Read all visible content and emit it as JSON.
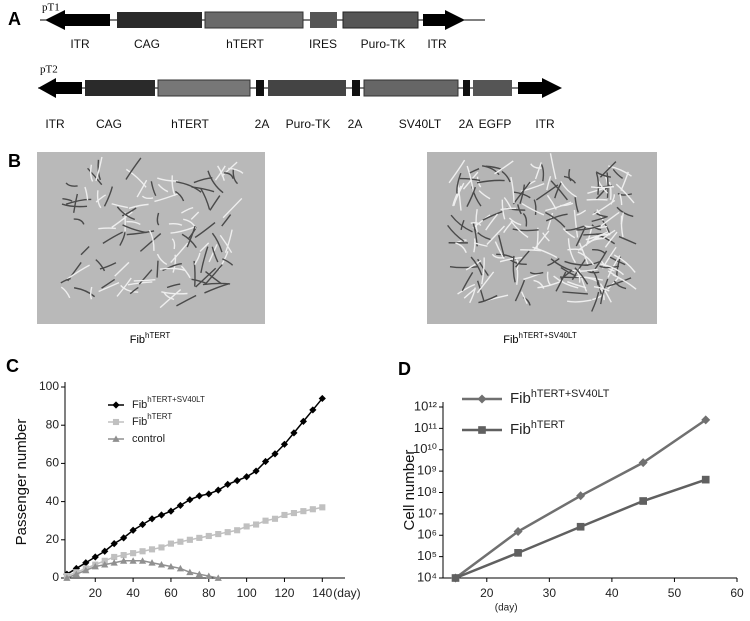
{
  "panel_labels": [
    "A",
    "B",
    "C",
    "D"
  ],
  "constructs": [
    {
      "name": "pT1",
      "parts": [
        "ITR",
        "CAG",
        "hTERT",
        "IRES",
        "Puro-TK",
        "ITR"
      ]
    },
    {
      "name": "pT2",
      "parts": [
        "ITR",
        "CAG",
        "hTERT",
        "2A",
        "Puro-TK",
        "2A",
        "SV40LT",
        "2A",
        "EGFP",
        "ITR"
      ]
    }
  ],
  "captions": [
    [
      "Fib",
      "hTERT"
    ],
    [
      "Fib",
      "hTERT+SV40LT"
    ]
  ],
  "chart_data": [
    {
      "type": "line",
      "ylabel": "Passenger number",
      "xlabel": "(day)",
      "x": [
        5,
        10,
        15,
        20,
        25,
        30,
        35,
        40,
        45,
        50,
        55,
        60,
        65,
        70,
        75,
        80,
        85,
        90,
        95,
        100,
        105,
        110,
        115,
        120,
        125,
        130,
        135,
        140
      ],
      "xlim": [
        4,
        152
      ],
      "xticks": [
        20,
        40,
        60,
        80,
        100,
        120,
        140
      ],
      "ylim": [
        0,
        100
      ],
      "yticks": [
        0,
        20,
        40,
        60,
        80,
        100
      ],
      "legend": "upper left",
      "series": [
        {
          "name": "Fib",
          "name_sup": "hTERT+SV40LT",
          "color": "#000000",
          "marker": "diamond",
          "values": [
            2,
            5,
            8,
            11,
            14,
            18,
            21,
            25,
            28,
            31,
            33,
            35,
            38,
            41,
            43,
            44,
            46,
            49,
            51,
            53,
            56,
            61,
            65,
            70,
            76,
            82,
            88,
            94
          ]
        },
        {
          "name": "Fib",
          "name_sup": "hTERT",
          "color": "#c0c0c0",
          "marker": "square",
          "values": [
            1,
            3,
            5,
            7,
            9,
            11,
            12,
            13,
            14,
            15,
            16,
            18,
            19,
            20,
            21,
            22,
            23,
            24,
            25,
            27,
            28,
            30,
            31,
            33,
            34,
            35,
            36,
            37
          ]
        },
        {
          "name": "control",
          "color": "#909090",
          "marker": "triangle",
          "values": [
            0,
            2,
            4,
            6,
            7,
            8,
            9,
            9,
            9,
            8,
            7,
            6,
            5,
            3,
            2,
            1,
            0,
            null,
            null,
            null,
            null,
            null,
            null,
            null,
            null,
            null,
            null,
            null
          ]
        }
      ]
    },
    {
      "type": "line",
      "ylabel": "Cell number",
      "xlabel": "(day)",
      "log_y": true,
      "x": [
        15,
        25,
        35,
        45,
        55
      ],
      "xlim": [
        13,
        60
      ],
      "xticks": [
        20,
        30,
        40,
        50,
        60
      ],
      "ylim": [
        10000,
        1000000000000
      ],
      "yticks": [
        {
          "value": 10000,
          "label": "10⁴"
        },
        {
          "value": 100000,
          "label": "10⁵"
        },
        {
          "value": 1000000,
          "label": "10⁶"
        },
        {
          "value": 10000000,
          "label": "10⁷"
        },
        {
          "value": 100000000,
          "label": "10⁸"
        },
        {
          "value": 1000000000,
          "label": "10⁹"
        },
        {
          "value": 10000000000,
          "label": "10¹⁰"
        },
        {
          "value": 100000000000,
          "label": "10¹¹"
        },
        {
          "value": 1000000000000,
          "label": "10¹²"
        }
      ],
      "legend": "upper left",
      "series": [
        {
          "name": "Fib",
          "name_sup": "hTERT+SV40LT",
          "color": "#707070",
          "marker": "diamond",
          "values": [
            10000,
            1500000,
            70000000,
            2500000000,
            250000000000
          ]
        },
        {
          "name": "Fib",
          "name_sup": "hTERT",
          "color": "#606060",
          "marker": "square",
          "values": [
            10000,
            150000,
            2500000,
            40000000,
            400000000
          ]
        }
      ]
    }
  ]
}
